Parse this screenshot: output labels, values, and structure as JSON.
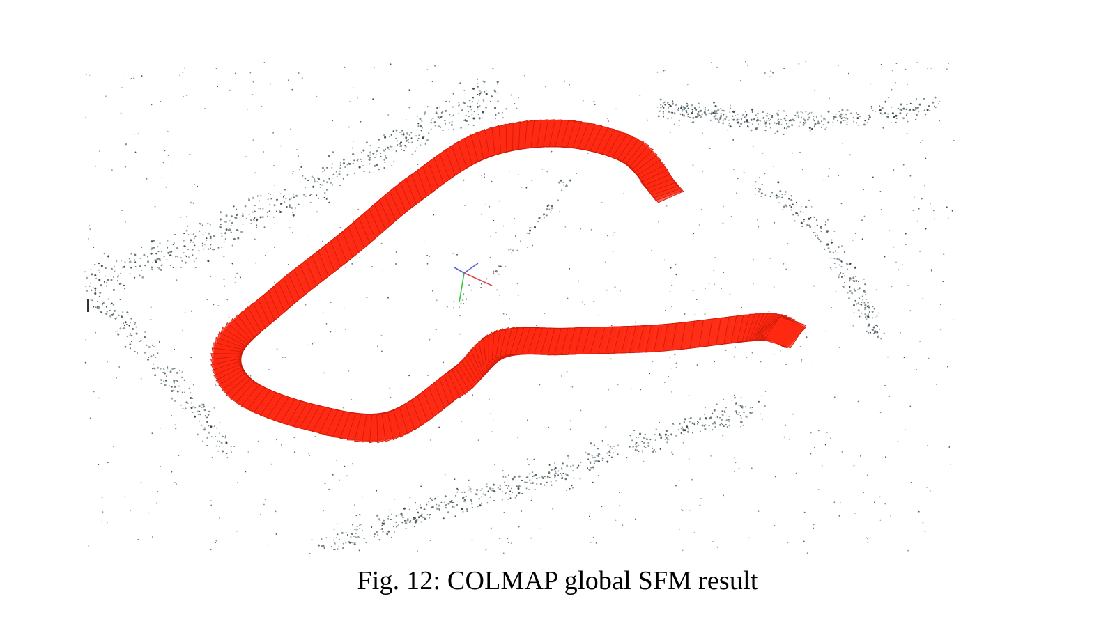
{
  "figure": {
    "caption": "Fig. 12: COLMAP global SFM result",
    "scene": {
      "camera_frustum_color": "#ff2a12",
      "camera_frustum_edge_color": "#cc1a08",
      "point_cloud_colors": [
        "#5c6b6e",
        "#7f9499",
        "#3f4a4c",
        "#98aab0",
        "#6d7a6a",
        "#8a8f86"
      ],
      "axis_colors": {
        "x": "#e0474d",
        "y": "#35c43a",
        "z": "#5a5fe0"
      }
    }
  }
}
